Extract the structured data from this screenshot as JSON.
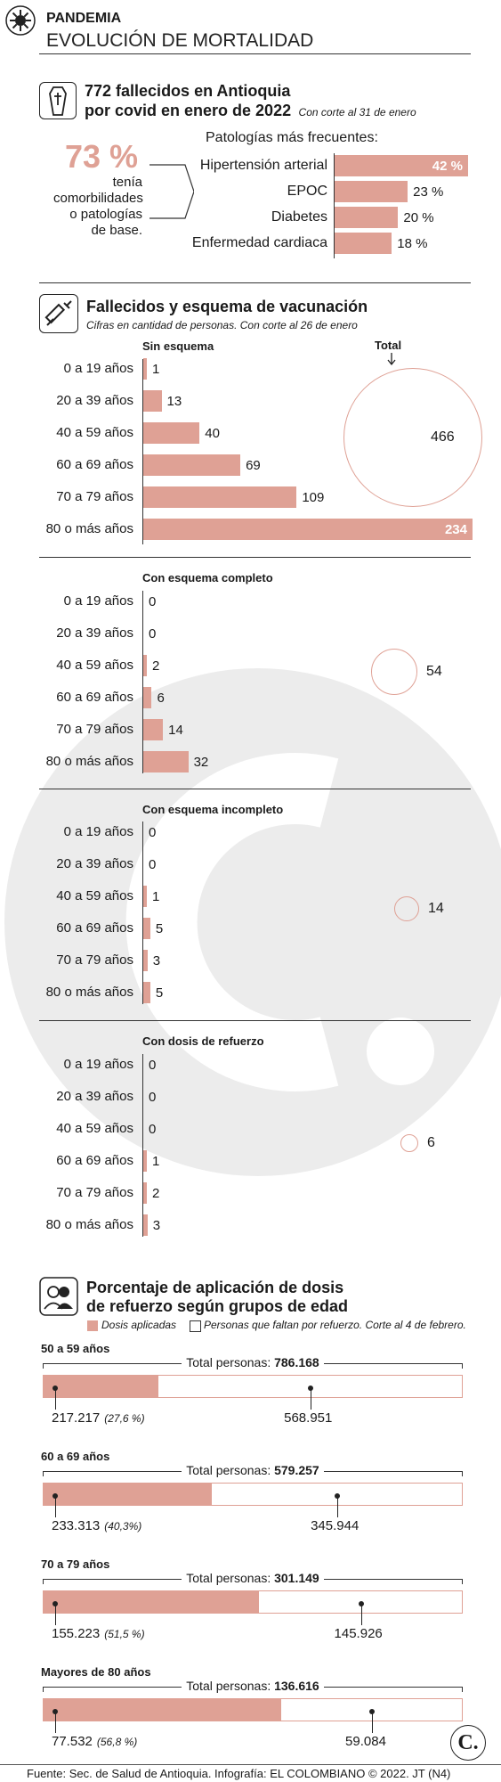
{
  "header": {
    "kicker": "PANDEMIA",
    "title": "EVOLUCIÓN DE MORTALIDAD"
  },
  "section1": {
    "title_line1": "772 fallecidos en Antioquia",
    "title_line2": "por covid en enero de 2022",
    "note": "Con corte al 31 de enero",
    "big_pct": "73 %",
    "desc": [
      "tenía",
      "comorbilidades",
      "o patologías",
      "de base."
    ],
    "pathologies_title": "Patologías más frecuentes:"
  },
  "section2": {
    "title": "Fallecidos y esquema de vacunación",
    "subtitle": "Cifras en cantidad de personas. Con corte al 26 de enero",
    "total_label": "Total",
    "age_groups": [
      "0 a 19 años",
      "20 a 39 años",
      "40 a 59 años",
      "60 a 69 años",
      "70 a 79 años",
      "80 o más años"
    ]
  },
  "section3": {
    "title_line1": "Porcentaje de aplicación de dosis",
    "title_line2": "de refuerzo según grupos de edad",
    "legend_applied": "Dosis aplicadas",
    "legend_missing": "Personas que faltan por refuerzo. Corte al 4 de febrero.",
    "total_prefix": "Total personas:"
  },
  "footer": {
    "source": "Fuente: Sec. de Salud de Antioquia. Infografía: EL COLOMBIANO © 2022. JT (N4)",
    "logo": "C."
  },
  "colors": {
    "bar": "#dfa195",
    "accent_text": "#dfa195",
    "watermark": "#ececec"
  },
  "chart_data": [
    {
      "type": "bar",
      "title": "Patologías más frecuentes:",
      "categories": [
        "Hipertensión arterial",
        "EPOC",
        "Diabetes",
        "Enfermedad cardiaca"
      ],
      "values": [
        42,
        23,
        20,
        18
      ],
      "labels": [
        "42 %",
        "23 %",
        "20 %",
        "18 %"
      ],
      "unit": "%"
    },
    {
      "type": "bar",
      "title": "Sin esquema",
      "categories": [
        "0 a 19 años",
        "20 a 39 años",
        "40 a 59 años",
        "60 a 69 años",
        "70 a 79 años",
        "80 o más años"
      ],
      "values": [
        1,
        13,
        40,
        69,
        109,
        234
      ],
      "total": 466
    },
    {
      "type": "bar",
      "title": "Con esquema completo",
      "categories": [
        "0 a 19 años",
        "20 a 39 años",
        "40 a 59 años",
        "60 a 69 años",
        "70 a 79 años",
        "80 o más años"
      ],
      "values": [
        0,
        0,
        2,
        6,
        14,
        32
      ],
      "total": 54
    },
    {
      "type": "bar",
      "title": "Con esquema incompleto",
      "categories": [
        "0 a 19 años",
        "20 a 39 años",
        "40 a 59 años",
        "60 a 69 años",
        "70 a 79 años",
        "80 o más años"
      ],
      "values": [
        0,
        0,
        1,
        5,
        3,
        5
      ],
      "total": 14
    },
    {
      "type": "bar",
      "title": "Con dosis de refuerzo",
      "categories": [
        "0 a 19 años",
        "20 a 39 años",
        "40 a 59 años",
        "60 a 69 años",
        "70 a 79 años",
        "80 o más años"
      ],
      "values": [
        0,
        0,
        0,
        1,
        2,
        3
      ],
      "total": 6
    },
    {
      "type": "bar",
      "title": "Porcentaje de aplicación de dosis de refuerzo según grupos de edad",
      "series": [
        {
          "name": "Dosis aplicadas",
          "values": [
            217217,
            233313,
            155223,
            77532
          ]
        },
        {
          "name": "Personas que faltan por refuerzo",
          "values": [
            568951,
            345944,
            145926,
            59084
          ]
        }
      ],
      "groups": [
        {
          "name": "50 a 59 años",
          "total": "786.168",
          "applied": "217.217",
          "pct": "(27,6 %)",
          "pct_value": 27.6,
          "missing": "568.951"
        },
        {
          "name": "60 a 69 años",
          "total": "579.257",
          "applied": "233.313",
          "pct": "(40,3%)",
          "pct_value": 40.3,
          "missing": "345.944"
        },
        {
          "name": "70 a 79 años",
          "total": "301.149",
          "applied": "155.223",
          "pct": "(51,5 %)",
          "pct_value": 51.5,
          "missing": "145.926"
        },
        {
          "name": "Mayores de 80 años",
          "total": "136.616",
          "applied": "77.532",
          "pct": "(56,8 %)",
          "pct_value": 56.8,
          "missing": "59.084"
        }
      ]
    }
  ]
}
